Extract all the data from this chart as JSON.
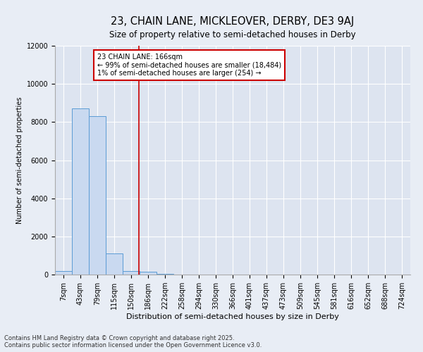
{
  "title1": "23, CHAIN LANE, MICKLEOVER, DERBY, DE3 9AJ",
  "title2": "Size of property relative to semi-detached houses in Derby",
  "xlabel": "Distribution of semi-detached houses by size in Derby",
  "ylabel": "Number of semi-detached properties",
  "categories": [
    "7sqm",
    "43sqm",
    "79sqm",
    "115sqm",
    "150sqm",
    "186sqm",
    "222sqm",
    "258sqm",
    "294sqm",
    "330sqm",
    "366sqm",
    "401sqm",
    "437sqm",
    "473sqm",
    "509sqm",
    "545sqm",
    "581sqm",
    "616sqm",
    "652sqm",
    "688sqm",
    "724sqm"
  ],
  "values": [
    200,
    8700,
    8300,
    1100,
    200,
    140,
    50,
    10,
    5,
    2,
    1,
    0,
    0,
    0,
    0,
    0,
    0,
    0,
    0,
    0,
    0
  ],
  "bar_color": "#c9d9f0",
  "bar_edge_color": "#5b9bd5",
  "vline_color": "#cc0000",
  "annotation_text": "23 CHAIN LANE: 166sqm\n← 99% of semi-detached houses are smaller (18,484)\n1% of semi-detached houses are larger (254) →",
  "annotation_box_color": "#cc0000",
  "ylim": [
    0,
    12000
  ],
  "yticks": [
    0,
    2000,
    4000,
    6000,
    8000,
    10000,
    12000
  ],
  "footer1": "Contains HM Land Registry data © Crown copyright and database right 2025.",
  "footer2": "Contains public sector information licensed under the Open Government Licence v3.0.",
  "bg_color": "#e8edf5",
  "plot_bg_color": "#dde4f0",
  "grid_color": "#ffffff",
  "title1_fontsize": 10.5,
  "title2_fontsize": 8.5,
  "xlabel_fontsize": 8,
  "ylabel_fontsize": 7,
  "tick_fontsize": 7,
  "annotation_fontsize": 7,
  "footer_fontsize": 6
}
